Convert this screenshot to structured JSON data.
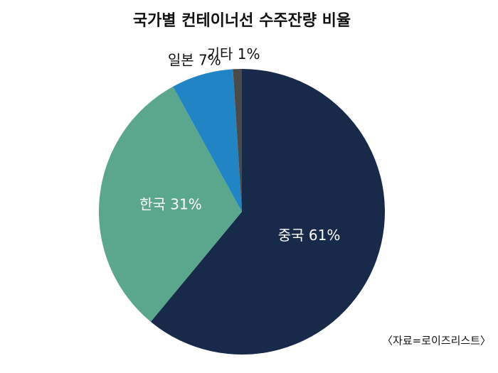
{
  "chart_data": {
    "type": "pie",
    "title": "국가별 컨테이너선 수주잔량 비율",
    "categories": [
      "중국",
      "한국",
      "일본",
      "기타"
    ],
    "values": [
      61,
      31,
      7,
      1
    ],
    "value_labels": [
      "61%",
      "31%",
      "7%",
      "1%"
    ],
    "colors": [
      "#172a4a",
      "#5aa78e",
      "#2185c5",
      "#4a4a4a"
    ],
    "source": "〈자료=로이즈리스트〉"
  }
}
